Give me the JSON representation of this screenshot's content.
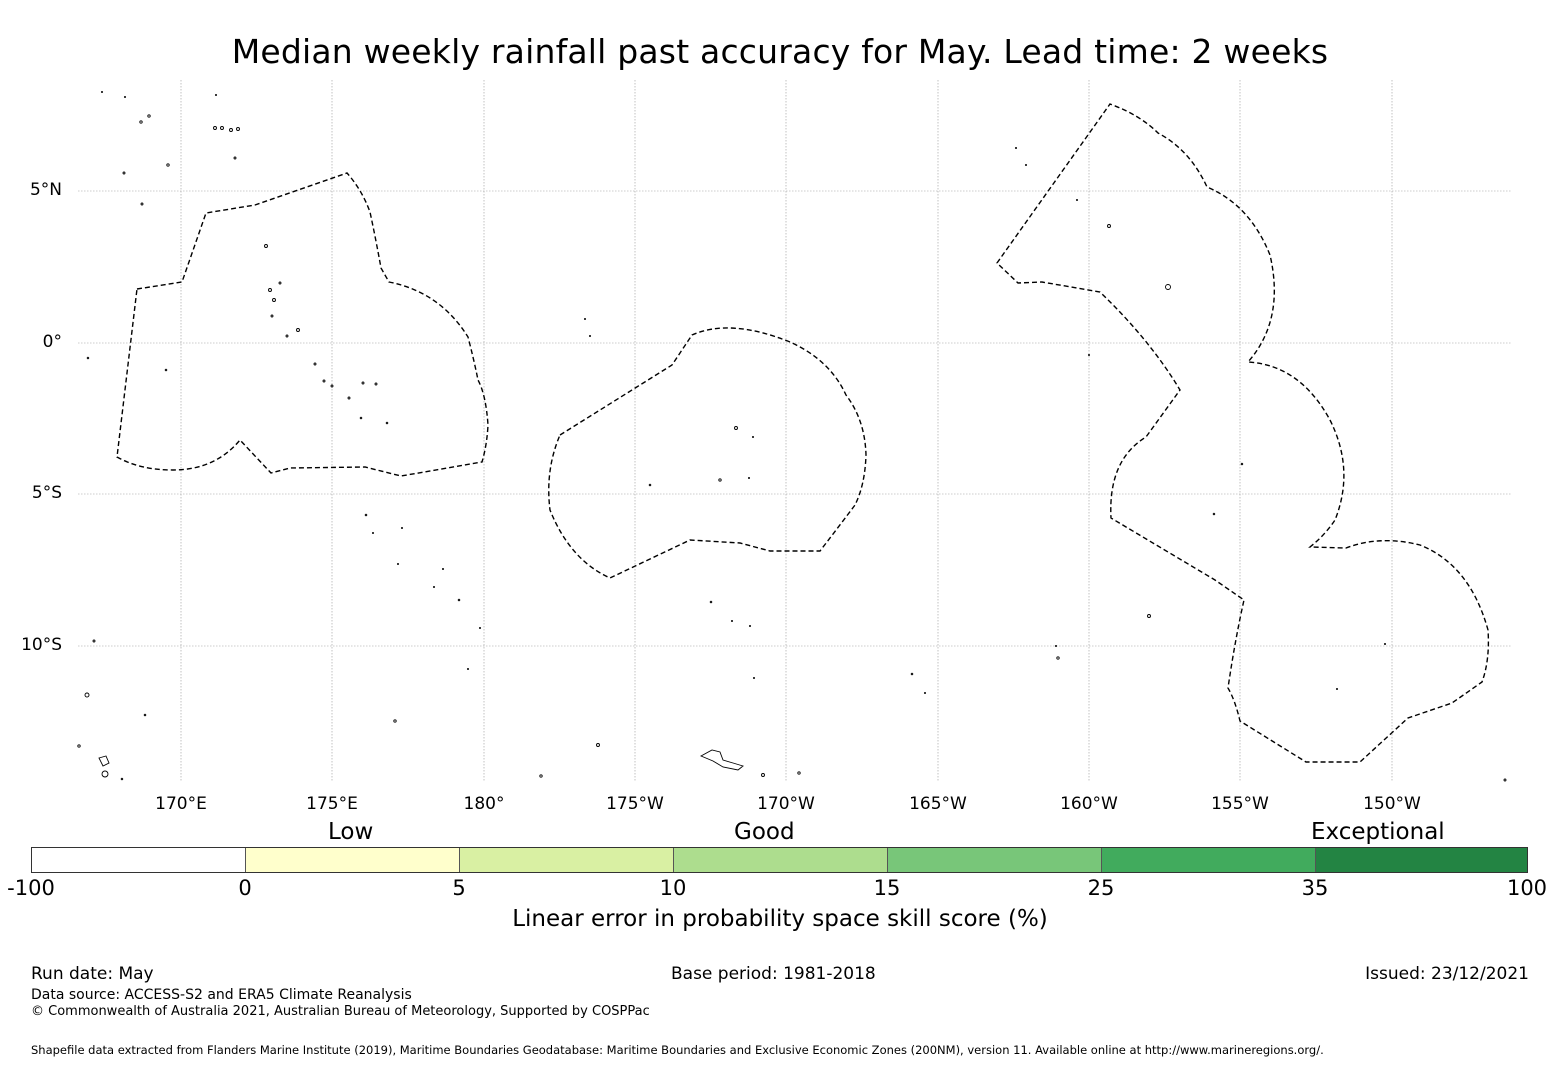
{
  "title": "Median weekly rainfall past accuracy for May. Lead time: 2 weeks",
  "map": {
    "lat_labels": [
      "5°N",
      "0°",
      "5°S",
      "10°S"
    ],
    "lon_labels": [
      "170°E",
      "175°E",
      "180°",
      "175°W",
      "170°W",
      "165°W",
      "160°W",
      "155°W",
      "150°W"
    ],
    "outline_style": "dashed black EEZ boundaries",
    "land_color": "#ffffff",
    "grid": true
  },
  "legend": {
    "categories": [
      "Low",
      "Good",
      "Exceptional"
    ],
    "segments": [
      {
        "from": "-100",
        "to": "0",
        "color": "#ffffff"
      },
      {
        "from": "0",
        "to": "5",
        "color": "#ffffcc"
      },
      {
        "from": "5",
        "to": "10",
        "color": "#d9f0a3"
      },
      {
        "from": "10",
        "to": "15",
        "color": "#addd8e"
      },
      {
        "from": "15",
        "to": "25",
        "color": "#78c679"
      },
      {
        "from": "25",
        "to": "35",
        "color": "#41ab5d"
      },
      {
        "from": "35",
        "to": "100",
        "color": "#238443"
      }
    ],
    "ticks": [
      "-100",
      "0",
      "5",
      "10",
      "15",
      "25",
      "35",
      "100"
    ],
    "title": "Linear error in probability space skill score (%)"
  },
  "footer": {
    "run_date": "Run date: May",
    "base_period": "Base period: 1981-2018",
    "issued": "Issued: 23/12/2021",
    "data_source": "Data source: ACCESS-S2 and ERA5 Climate Reanalysis",
    "copyright": "© Commonwealth of Australia 2021, Australian Bureau of Meteorology, Supported by COSPPac",
    "shapefile": "Shapefile data extracted from Flanders Marine Institute (2019), Maritime Boundaries Geodatabase: Maritime Boundaries and Exclusive Economic Zones (200NM), version 11. Available online at http://www.marineregions.org/."
  }
}
